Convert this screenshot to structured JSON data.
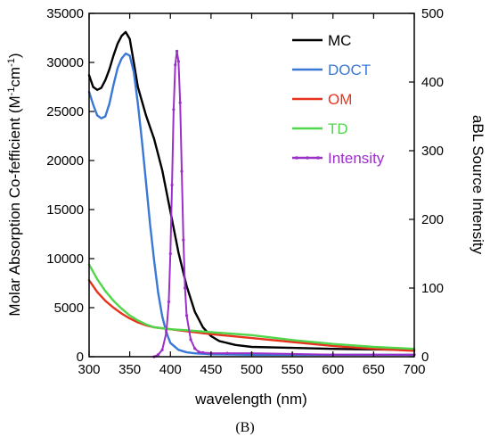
{
  "panel_label": "(B)",
  "chart_data": {
    "type": "line",
    "xlabel": "wavelength (nm)",
    "ylabel_left": "Molar Absorption Co-fefficient (M",
    "ylabel_left_sup1": "-1",
    "ylabel_left_mid": "cm",
    "ylabel_left_sup2": "-1",
    "ylabel_left_end": ")",
    "ylabel_right": "aBL Source Intensity",
    "xlim": [
      300,
      700
    ],
    "ylim_left": [
      0,
      35000
    ],
    "ylim_right": [
      0,
      500
    ],
    "x_ticks": [
      300,
      350,
      400,
      450,
      500,
      550,
      600,
      650,
      700
    ],
    "x_tick_labels": [
      "300",
      "350",
      "400",
      "450",
      "500",
      "550",
      "600",
      "650",
      "700"
    ],
    "y_left_ticks": [
      0,
      5000,
      10000,
      15000,
      20000,
      25000,
      30000,
      35000
    ],
    "y_left_tick_labels": [
      "0",
      "5000",
      "10000",
      "15000",
      "20000",
      "25000",
      "30000",
      "35000"
    ],
    "y_right_ticks": [
      0,
      100,
      200,
      300,
      400,
      500
    ],
    "y_right_tick_labels": [
      "0",
      "100",
      "200",
      "300",
      "400",
      "500"
    ],
    "grid": false,
    "legend_position": "top-right",
    "series": [
      {
        "name": "MC",
        "color": "#000000",
        "axis": "left",
        "markers": false,
        "x": [
          300,
          305,
          310,
          315,
          320,
          325,
          330,
          335,
          340,
          345,
          350,
          355,
          360,
          370,
          380,
          390,
          400,
          410,
          420,
          430,
          440,
          450,
          460,
          480,
          500,
          550,
          600,
          650,
          700
        ],
        "y": [
          28700,
          27500,
          27200,
          27400,
          28200,
          29300,
          30700,
          31900,
          32700,
          33100,
          32400,
          30000,
          27500,
          24600,
          22200,
          19000,
          14800,
          10600,
          7200,
          4600,
          3000,
          2100,
          1600,
          1200,
          1000,
          900,
          800,
          750,
          700
        ]
      },
      {
        "name": "DOCT",
        "color": "#3a78d6",
        "axis": "left",
        "markers": false,
        "x": [
          300,
          305,
          310,
          315,
          320,
          325,
          330,
          335,
          340,
          345,
          350,
          355,
          360,
          365,
          370,
          375,
          380,
          385,
          390,
          395,
          400,
          410,
          420,
          430,
          440,
          450,
          500,
          550,
          600,
          650,
          700
        ],
        "y": [
          27000,
          25700,
          24600,
          24300,
          24500,
          25800,
          27700,
          29400,
          30400,
          30900,
          30700,
          29000,
          25800,
          22000,
          17800,
          13500,
          9800,
          6500,
          4100,
          2500,
          1400,
          700,
          450,
          350,
          300,
          250,
          200,
          200,
          200,
          200,
          200
        ]
      },
      {
        "name": "OM",
        "color": "#e8321e",
        "axis": "left",
        "markers": false,
        "x": [
          300,
          310,
          320,
          330,
          340,
          350,
          360,
          370,
          380,
          400,
          420,
          450,
          500,
          550,
          600,
          650,
          700
        ],
        "y": [
          7800,
          6600,
          5700,
          5000,
          4400,
          3900,
          3500,
          3200,
          3000,
          2800,
          2600,
          2300,
          1900,
          1500,
          1100,
          800,
          600
        ]
      },
      {
        "name": "TD",
        "color": "#4fd64a",
        "axis": "left",
        "markers": false,
        "x": [
          300,
          310,
          320,
          330,
          340,
          350,
          360,
          370,
          380,
          400,
          420,
          450,
          500,
          550,
          600,
          650,
          700
        ],
        "y": [
          9400,
          7900,
          6700,
          5700,
          4900,
          4200,
          3700,
          3300,
          3000,
          2800,
          2700,
          2500,
          2200,
          1700,
          1300,
          1000,
          800
        ]
      },
      {
        "name": "Intensity",
        "color": "#9b30c8",
        "axis": "right",
        "markers": true,
        "x": [
          380,
          385,
          390,
          395,
          398,
          400,
          402,
          404,
          406,
          408,
          410,
          412,
          414,
          416,
          418,
          420,
          425,
          430,
          435,
          440,
          450,
          470,
          500,
          550,
          600,
          650,
          700
        ],
        "y": [
          0,
          3,
          10,
          35,
          80,
          150,
          250,
          360,
          425,
          445,
          430,
          370,
          270,
          170,
          100,
          60,
          25,
          12,
          7,
          6,
          5,
          5,
          5,
          4,
          3,
          3,
          3
        ]
      }
    ]
  }
}
